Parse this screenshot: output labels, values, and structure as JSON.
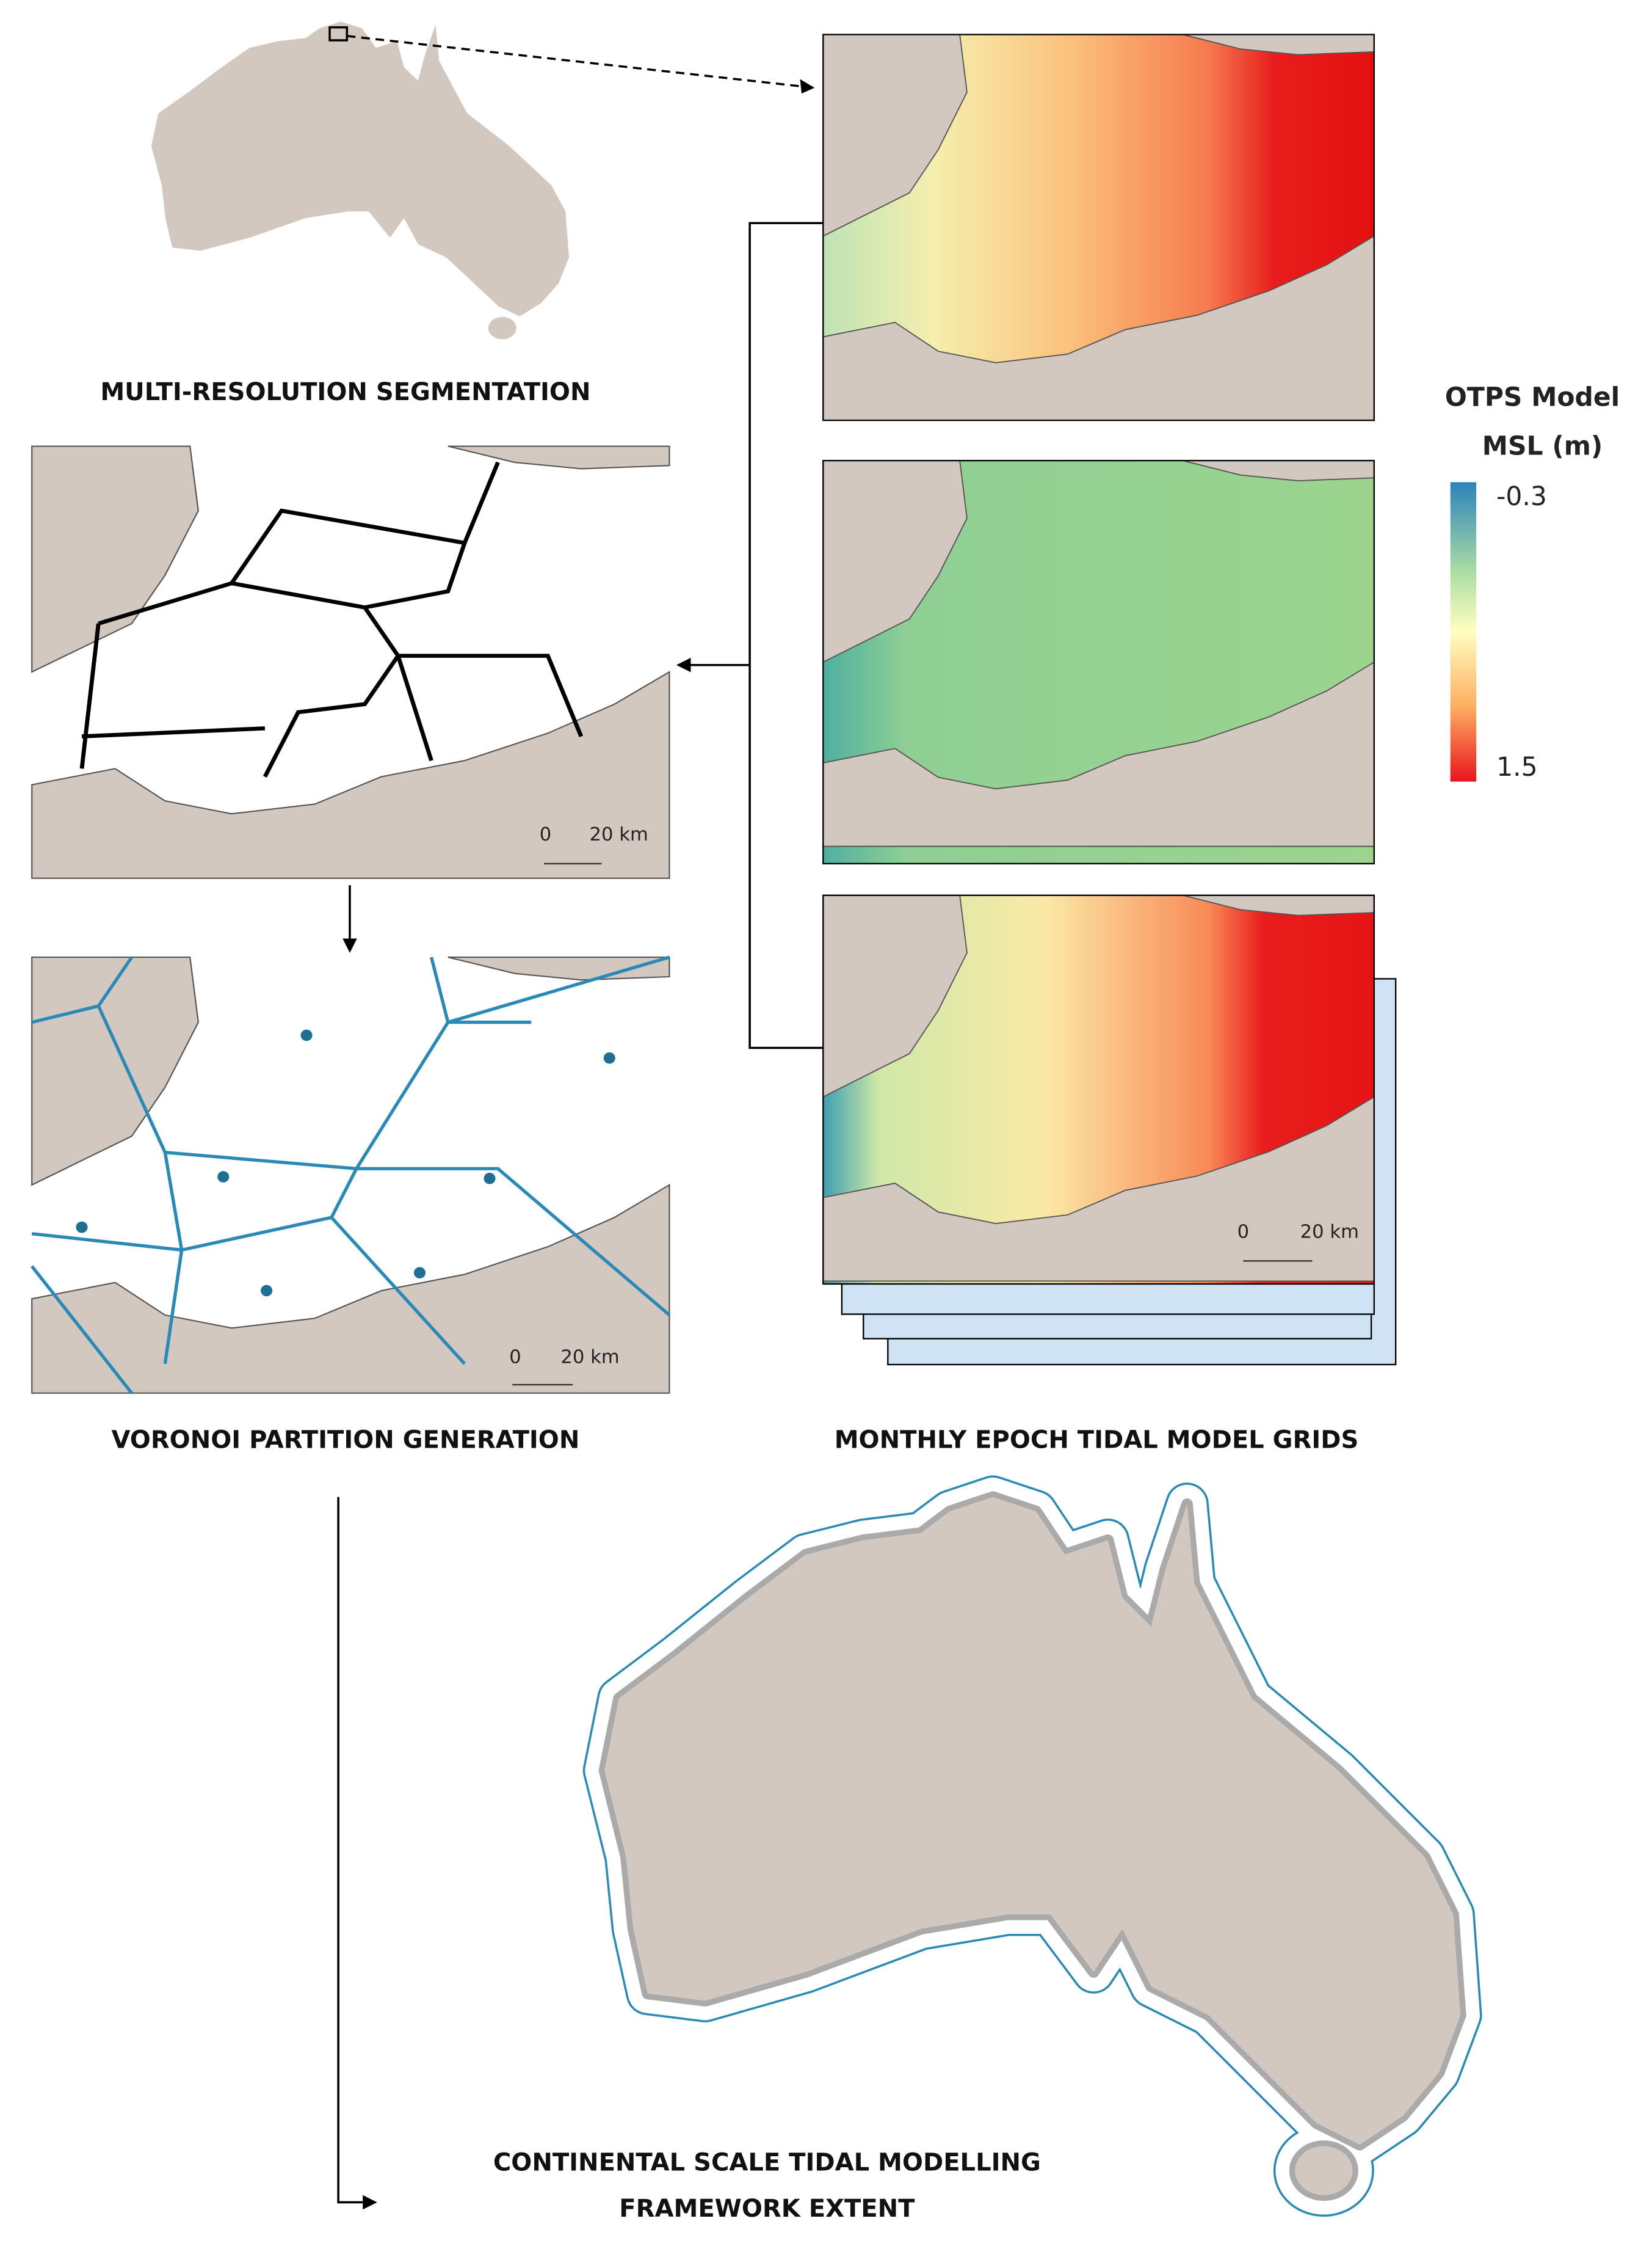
{
  "panels": {
    "segmentation": {
      "title": "MULTI-RESOLUTION SEGMENTATION",
      "scale": [
        "0",
        "20 km"
      ]
    },
    "voronoi": {
      "title": "VORONOI PARTITION GENERATION",
      "scale": [
        "0",
        "20 km"
      ]
    },
    "grids": {
      "title": "MONTHLY EPOCH TIDAL MODEL GRIDS",
      "scale": [
        "0",
        "20 km"
      ]
    },
    "continental": {
      "title": [
        "CONTINENTAL SCALE TIDAL MODELLING",
        "FRAMEWORK EXTENT"
      ]
    }
  },
  "legend": {
    "title": [
      "OTPS Model",
      "MSL (m)"
    ],
    "ticks": [
      -0.3,
      1.5
    ]
  }
}
